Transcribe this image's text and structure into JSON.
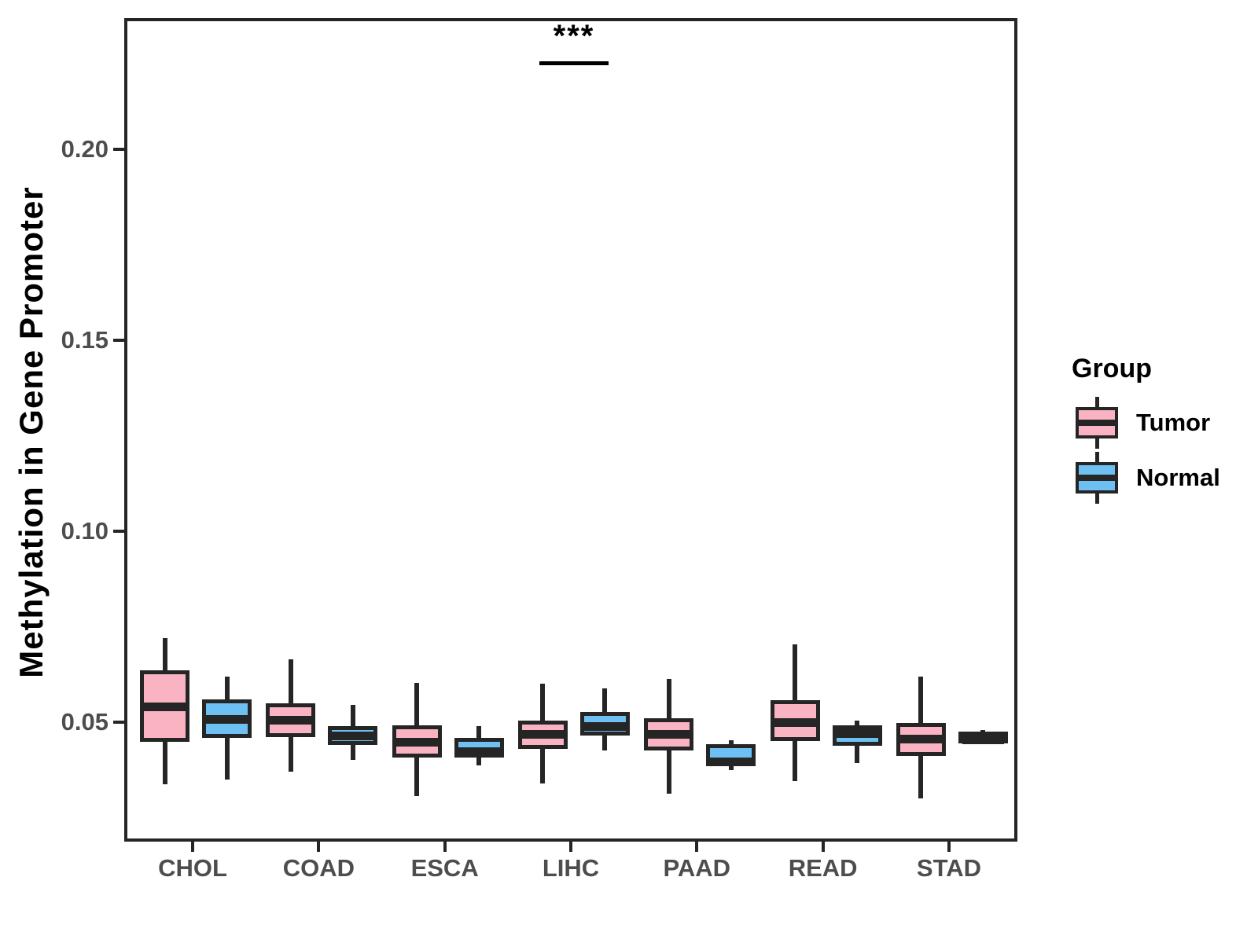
{
  "colors": {
    "tumor_fill": "#F9B3C2",
    "normal_fill": "#6EC0F3",
    "stroke_dark": "#252525",
    "tick_text": "#4D4D4D",
    "background": "#FFFFFF"
  },
  "legend": {
    "title": "Group",
    "entries": [
      {
        "label": "Tumor",
        "color": "#F9B3C2"
      },
      {
        "label": "Normal",
        "color": "#6EC0F3"
      }
    ]
  },
  "chart_data": {
    "type": "boxplot",
    "title": "",
    "xlabel": "",
    "ylabel": "Methylation in Gene Promoter",
    "categories": [
      "CHOL",
      "COAD",
      "ESCA",
      "LIHC",
      "PAAD",
      "READ",
      "STAD"
    ],
    "groups": [
      "Tumor",
      "Normal"
    ],
    "yticks": [
      0.05,
      0.1,
      0.15,
      0.2
    ],
    "ytick_labels": [
      "0.05",
      "0.10",
      "0.15",
      "0.20"
    ],
    "ylim": [
      0.0187,
      0.2344
    ],
    "grid": "off",
    "legend_position": "right",
    "series": [
      {
        "category": "CHOL",
        "group": "Tumor",
        "lower": 0.0346,
        "q1": 0.0457,
        "median": 0.0549,
        "q3": 0.0643,
        "upper": 0.0728
      },
      {
        "category": "CHOL",
        "group": "Normal",
        "lower": 0.0357,
        "q1": 0.0466,
        "median": 0.0515,
        "q3": 0.0568,
        "upper": 0.0627
      },
      {
        "category": "COAD",
        "group": "Tumor",
        "lower": 0.0378,
        "q1": 0.0469,
        "median": 0.0513,
        "q3": 0.0558,
        "upper": 0.0673
      },
      {
        "category": "COAD",
        "group": "Normal",
        "lower": 0.041,
        "q1": 0.0448,
        "median": 0.0473,
        "q3": 0.0497,
        "upper": 0.0553
      },
      {
        "category": "ESCA",
        "group": "Tumor",
        "lower": 0.0314,
        "q1": 0.0416,
        "median": 0.0455,
        "q3": 0.05,
        "upper": 0.0611
      },
      {
        "category": "ESCA",
        "group": "Normal",
        "lower": 0.0395,
        "q1": 0.0415,
        "median": 0.043,
        "q3": 0.0467,
        "upper": 0.0497
      },
      {
        "category": "LIHC",
        "group": "Tumor",
        "lower": 0.0348,
        "q1": 0.0438,
        "median": 0.0477,
        "q3": 0.0512,
        "upper": 0.0609
      },
      {
        "category": "LIHC",
        "group": "Normal",
        "lower": 0.0433,
        "q1": 0.0473,
        "median": 0.0497,
        "q3": 0.0534,
        "upper": 0.0597
      },
      {
        "category": "PAAD",
        "group": "Tumor",
        "lower": 0.032,
        "q1": 0.0433,
        "median": 0.0477,
        "q3": 0.0519,
        "upper": 0.0621
      },
      {
        "category": "PAAD",
        "group": "Normal",
        "lower": 0.0383,
        "q1": 0.0392,
        "median": 0.0405,
        "q3": 0.0451,
        "upper": 0.046
      },
      {
        "category": "READ",
        "group": "Tumor",
        "lower": 0.0354,
        "q1": 0.0459,
        "median": 0.0508,
        "q3": 0.0565,
        "upper": 0.0711
      },
      {
        "category": "READ",
        "group": "Normal",
        "lower": 0.0401,
        "q1": 0.0446,
        "median": 0.0479,
        "q3": 0.0499,
        "upper": 0.0513
      },
      {
        "category": "STAD",
        "group": "Tumor",
        "lower": 0.0309,
        "q1": 0.0419,
        "median": 0.0464,
        "q3": 0.0506,
        "upper": 0.0628
      },
      {
        "category": "STAD",
        "group": "Normal",
        "lower": 0.0451,
        "q1": 0.0453,
        "median": 0.0468,
        "q3": 0.0484,
        "upper": 0.0487
      }
    ],
    "annotation": {
      "text": "***",
      "category": "LIHC",
      "line_y": 0.2239,
      "text_y": 0.233
    }
  }
}
